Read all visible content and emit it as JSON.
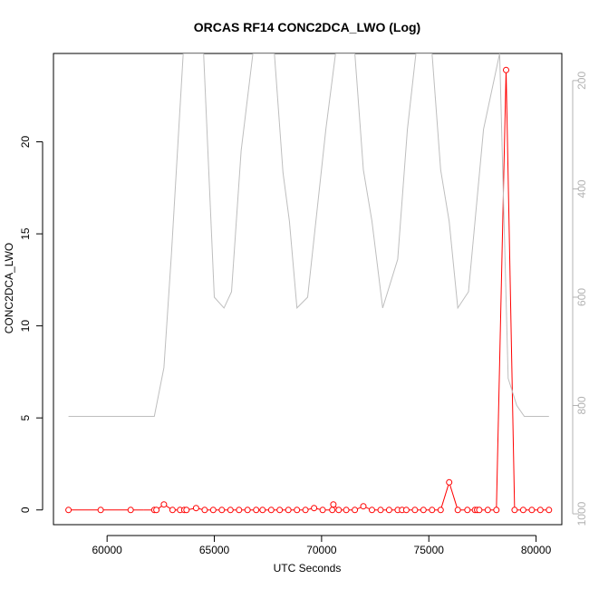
{
  "chart_data": {
    "type": "line",
    "title": "ORCAS RF14 CONC2DCA_LWO (Log)",
    "xlabel": "UTC Seconds",
    "ylabel": "CONC2DCA_LWO",
    "xlim": [
      57500,
      81200
    ],
    "ylim": [
      -0.8,
      24.8
    ],
    "x_ticks": [
      60000,
      65000,
      70000,
      75000,
      80000
    ],
    "y_ticks": [
      0,
      5,
      10,
      15,
      20
    ],
    "y2_ticks": [
      200,
      400,
      600,
      800,
      1000
    ],
    "y2lim": [
      1020,
      150
    ],
    "y2_inverted": true,
    "grid": false,
    "series": [
      {
        "color": "#ff0000",
        "axis": "left",
        "style": "line+circle",
        "x": [
          58200,
          59700,
          61100,
          61700,
          62200,
          62300,
          62650,
          63050,
          63400,
          63600,
          63700,
          64150,
          64550,
          64950,
          65350,
          65750,
          66150,
          66550,
          66950,
          67250,
          67650,
          68050,
          68450,
          68850,
          69250,
          69650,
          70050,
          70500,
          70550,
          70800,
          71150,
          71550,
          71950,
          72350,
          72750,
          73150,
          73550,
          73750,
          73950,
          74350,
          74750,
          75150,
          75550,
          75950,
          76350,
          76800,
          77150,
          77250,
          77350,
          77750,
          78150,
          78600,
          79000,
          79400,
          79800,
          80200,
          80600
        ],
        "y": [
          0,
          0,
          0,
          0,
          0,
          0,
          0.3,
          0,
          0,
          0,
          0,
          0.1,
          0,
          0,
          0,
          0,
          0,
          0,
          0,
          0,
          0,
          0,
          0,
          0,
          0,
          0.1,
          0,
          0,
          0.3,
          0,
          0,
          0,
          0.2,
          0,
          0,
          0,
          0,
          0,
          0,
          0,
          0,
          0,
          0,
          1.5,
          0,
          0,
          0,
          0,
          0,
          0,
          0,
          23.9,
          0,
          0,
          0,
          0,
          0
        ],
        "markers_x": [
          58200,
          59700,
          61100,
          62200,
          62300,
          62650,
          63050,
          63400,
          63600,
          63700,
          64150,
          64550,
          64950,
          65350,
          65750,
          66150,
          66550,
          66950,
          67250,
          67650,
          68050,
          68450,
          68850,
          69250,
          69650,
          70050,
          70500,
          70550,
          70800,
          71150,
          71550,
          71950,
          72350,
          72750,
          73150,
          73550,
          73750,
          73950,
          74350,
          74750,
          75150,
          75550,
          75950,
          76350,
          76800,
          77150,
          77250,
          77350,
          77750,
          78150,
          78600,
          79000,
          79400,
          79800,
          80200,
          80600
        ],
        "markers_y": [
          0,
          0,
          0,
          0,
          0,
          0.3,
          0,
          0,
          0,
          0,
          0.1,
          0,
          0,
          0,
          0,
          0,
          0,
          0,
          0,
          0,
          0,
          0,
          0,
          0,
          0.1,
          0,
          0,
          0.3,
          0,
          0,
          0,
          0.2,
          0,
          0,
          0,
          0,
          0,
          0,
          0,
          0,
          0,
          0,
          1.5,
          0,
          0,
          0,
          0,
          0,
          0,
          0,
          23.9,
          0,
          0,
          0,
          0,
          0
        ],
        "gaps_after_x": [
          59700,
          61100,
          61700
        ]
      },
      {
        "color": "#bebebe",
        "axis": "right",
        "style": "line",
        "x": [
          58200,
          62200,
          62650,
          63000,
          63550,
          64050,
          64500,
          65000,
          65450,
          65800,
          66250,
          66800,
          67250,
          67800,
          68200,
          68500,
          68850,
          69350,
          70200,
          70650,
          71100,
          71550,
          71950,
          72350,
          72850,
          73550,
          74000,
          74400,
          74850,
          75150,
          75550,
          75950,
          76350,
          76850,
          77550,
          78300,
          78700,
          79100,
          79450,
          80600
        ],
        "y": [
          820,
          820,
          730,
          520,
          150,
          150,
          150,
          600,
          620,
          590,
          330,
          150,
          150,
          150,
          370,
          460,
          620,
          600,
          290,
          150,
          150,
          150,
          365,
          460,
          620,
          530,
          290,
          150,
          150,
          150,
          365,
          460,
          620,
          590,
          290,
          150,
          750,
          800,
          820,
          820
        ]
      }
    ]
  }
}
